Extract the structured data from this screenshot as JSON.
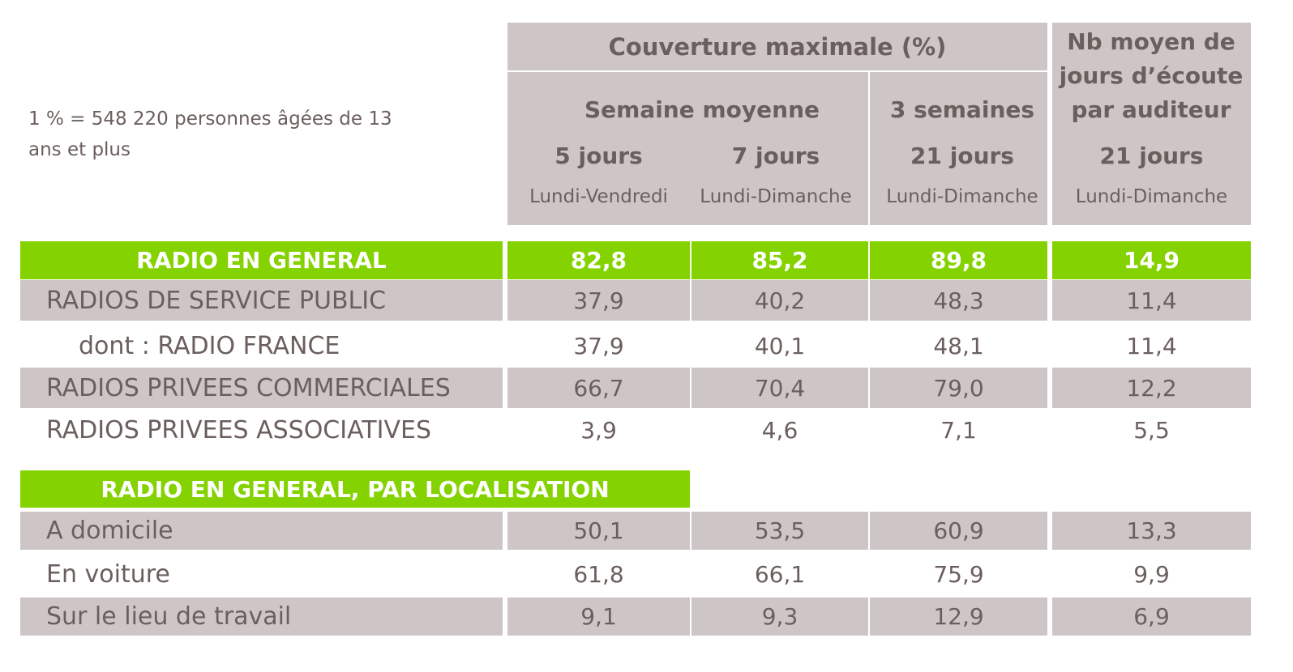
{
  "note": "1 % = 548 220 personnes âgées de 13 ans et plus",
  "header": {
    "coverage": "Couverture maximale (%)",
    "avg_week": "Semaine moyenne",
    "three_weeks": "3 semaines",
    "days_title": "Nb moyen de jours d’écoute par auditeur",
    "cols": [
      {
        "days": "5 jours",
        "range": "Lundi-Vendredi"
      },
      {
        "days": "7 jours",
        "range": "Lundi-Dimanche"
      },
      {
        "days": "21 jours",
        "range": "Lundi-Dimanche"
      },
      {
        "days": "21 jours",
        "range": "Lundi-Dimanche"
      }
    ]
  },
  "colors": {
    "green": "#84d300",
    "gray": "#cec6c6",
    "text": "#6b5f5e"
  },
  "chart_data": {
    "type": "table",
    "columns": [
      "5 jours Lundi-Vendredi",
      "7 jours Lundi-Dimanche",
      "21 jours Lundi-Dimanche",
      "Nb moyen de jours 21 jours Lundi-Dimanche"
    ],
    "total": {
      "label": "RADIO EN GENERAL",
      "values": [
        "82,8",
        "85,2",
        "89,8",
        "14,9"
      ]
    },
    "rows": [
      {
        "label": "RADIOS DE SERVICE PUBLIC",
        "values": [
          "37,9",
          "40,2",
          "48,3",
          "11,4"
        ]
      },
      {
        "label": "dont : RADIO FRANCE",
        "values": [
          "37,9",
          "40,1",
          "48,1",
          "11,4"
        ]
      },
      {
        "label": "RADIOS PRIVEES COMMERCIALES",
        "values": [
          "66,7",
          "70,4",
          "79,0",
          "12,2"
        ]
      },
      {
        "label": "RADIOS PRIVEES ASSOCIATIVES",
        "values": [
          "3,9",
          "4,6",
          "7,1",
          "5,5"
        ]
      }
    ],
    "section2": "RADIO EN GENERAL, PAR LOCALISATION",
    "rows2": [
      {
        "label": "A domicile",
        "values": [
          "50,1",
          "53,5",
          "60,9",
          "13,3"
        ]
      },
      {
        "label": "En voiture",
        "values": [
          "61,8",
          "66,1",
          "75,9",
          "9,9"
        ]
      },
      {
        "label": "Sur le lieu de travail",
        "values": [
          "9,1",
          "9,3",
          "12,9",
          "6,9"
        ]
      }
    ]
  }
}
